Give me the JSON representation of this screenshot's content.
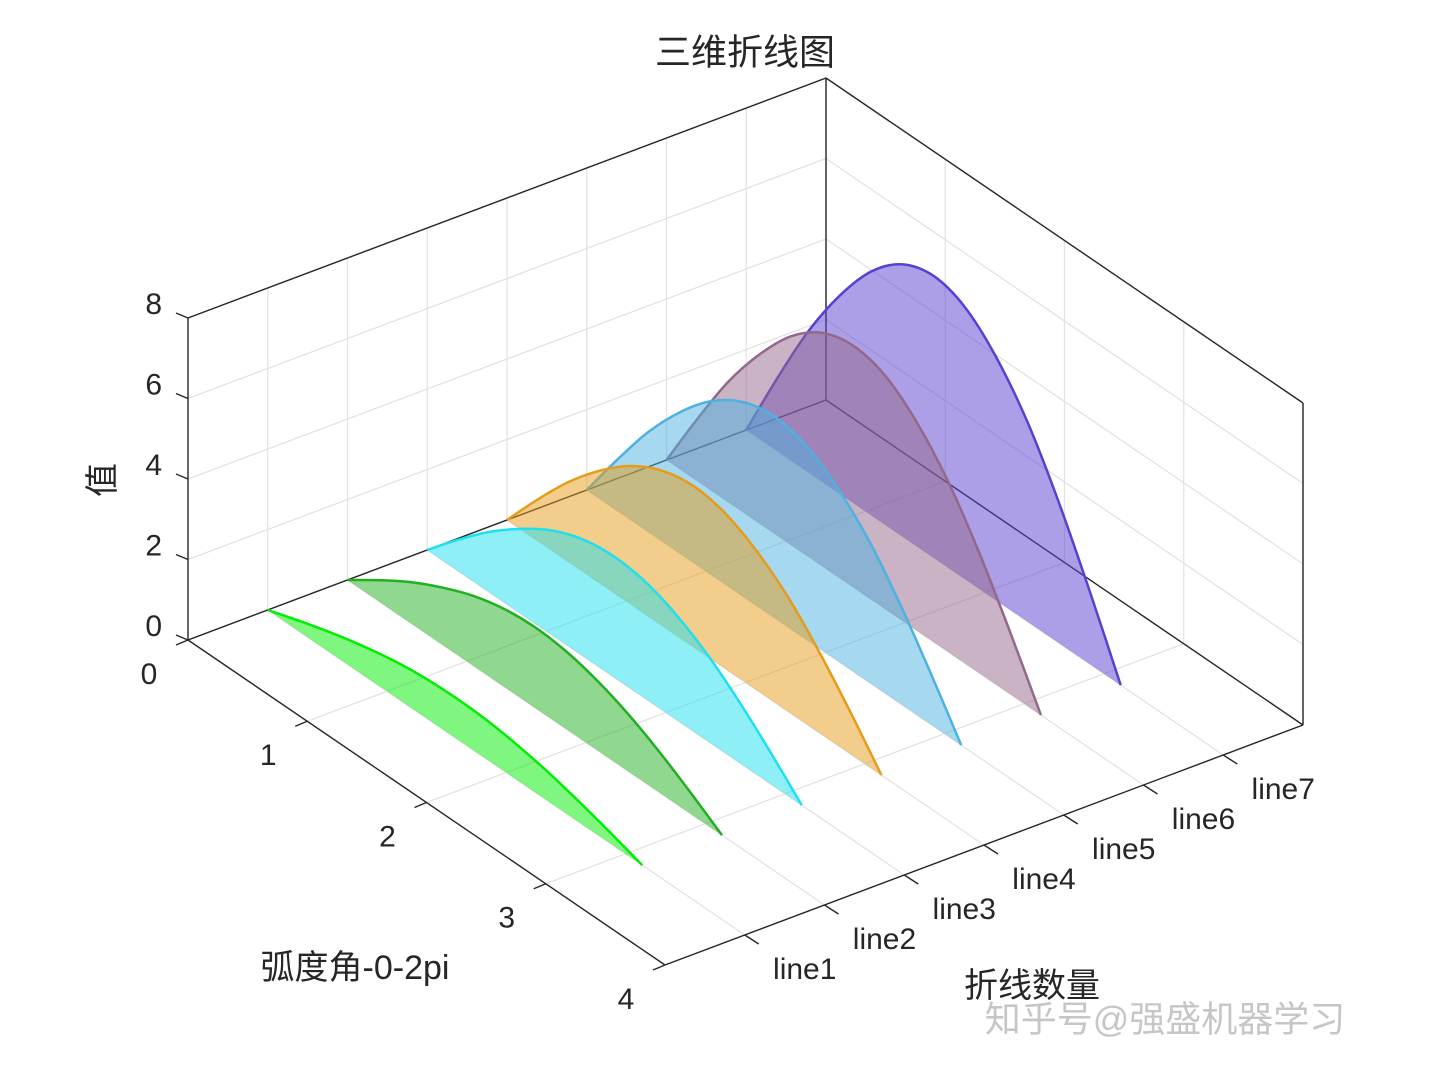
{
  "chart_data": {
    "type": "ribbon3d",
    "title": "三维折线图",
    "xlabel": "弧度角-0-2pi",
    "ylabel": "折线数量",
    "zlabel": "值",
    "x": [
      0,
      0.26,
      0.52,
      0.79,
      1.05,
      1.31,
      1.57,
      1.83,
      2.09,
      2.36,
      2.62,
      2.88,
      3.14
    ],
    "xlim": [
      0,
      4
    ],
    "xticks": [
      0,
      1,
      2,
      3,
      4
    ],
    "ylim": [
      0,
      8
    ],
    "yticks": [
      {
        "value": 1,
        "label": "line1"
      },
      {
        "value": 2,
        "label": "line2"
      },
      {
        "value": 3,
        "label": "line3"
      },
      {
        "value": 4,
        "label": "line4"
      },
      {
        "value": 5,
        "label": "line5"
      },
      {
        "value": 6,
        "label": "line6"
      },
      {
        "value": 7,
        "label": "line7"
      }
    ],
    "zlim": [
      0,
      8
    ],
    "zticks": [
      0,
      2,
      4,
      6,
      8
    ],
    "grid": true,
    "series": [
      {
        "y": 1,
        "color": "#00ee00",
        "values": [
          0,
          0.26,
          0.5,
          0.71,
          0.87,
          0.97,
          1,
          0.97,
          0.87,
          0.71,
          0.5,
          0.26,
          0
        ]
      },
      {
        "y": 2,
        "color": "#21b021",
        "values": [
          0,
          0.52,
          1,
          1.41,
          1.73,
          1.93,
          2,
          1.93,
          1.73,
          1.41,
          1,
          0.52,
          0
        ]
      },
      {
        "y": 3,
        "color": "#1ee0ee",
        "values": [
          0,
          0.78,
          1.5,
          2.12,
          2.6,
          2.9,
          3,
          2.9,
          2.6,
          2.12,
          1.5,
          0.78,
          0
        ]
      },
      {
        "y": 4,
        "color": "#e69c1a",
        "values": [
          0,
          1.04,
          2,
          2.83,
          3.46,
          3.86,
          4,
          3.86,
          3.46,
          2.83,
          2,
          1.04,
          0
        ]
      },
      {
        "y": 5,
        "color": "#4db2e0",
        "values": [
          0,
          1.29,
          2.5,
          3.54,
          4.33,
          4.83,
          5,
          4.83,
          4.33,
          3.54,
          2.5,
          1.29,
          0
        ]
      },
      {
        "y": 6,
        "color": "#93688a",
        "values": [
          0,
          1.55,
          3,
          4.24,
          5.2,
          5.8,
          6,
          5.8,
          5.2,
          4.24,
          3,
          1.55,
          0
        ]
      },
      {
        "y": 7,
        "color": "#5a3fd0",
        "values": [
          0,
          1.81,
          3.5,
          4.95,
          6.06,
          6.76,
          7,
          6.76,
          6.06,
          4.95,
          3.5,
          1.81,
          0
        ]
      }
    ]
  },
  "watermark": "知乎号@强盛机器学习"
}
